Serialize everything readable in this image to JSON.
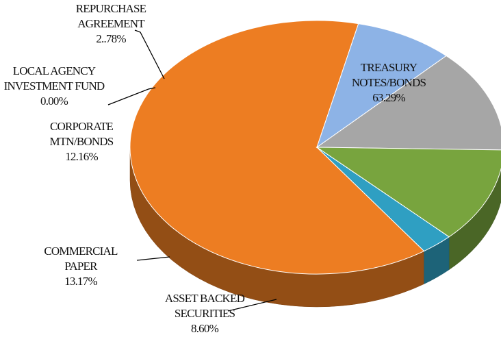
{
  "chart_data": {
    "type": "pie",
    "style": "3d",
    "slices": [
      {
        "key": "treasury",
        "lines": [
          "TREASURY",
          "NOTES/BONDS"
        ],
        "pct_label": "63.29%",
        "value": 63.29,
        "color": "#ed7d22"
      },
      {
        "key": "abs",
        "lines": [
          "ASSET BACKED",
          "SECURITIES"
        ],
        "pct_label": "8.60%",
        "value": 8.6,
        "color": "#8db3e6"
      },
      {
        "key": "cp",
        "lines": [
          "COMMERCIAL",
          "PAPER"
        ],
        "pct_label": "13.17%",
        "value": 13.17,
        "color": "#a6a6a6"
      },
      {
        "key": "corp",
        "lines": [
          "CORPORATE",
          "MTN/BONDS"
        ],
        "pct_label": "12.16%",
        "value": 12.16,
        "color": "#78a43e"
      },
      {
        "key": "laif",
        "lines": [
          "LOCAL AGENCY",
          "INVESTMENT FUND"
        ],
        "pct_label": "0.00%",
        "value": 0.0,
        "color": "#5b9bd5"
      },
      {
        "key": "repo",
        "lines": [
          "REPURCHASE",
          "AGREEMENT"
        ],
        "pct_label": "2..78%",
        "value": 2.78,
        "color": "#2f9fc2"
      }
    ],
    "legend": "none",
    "labels": "outside-with-leaders"
  }
}
